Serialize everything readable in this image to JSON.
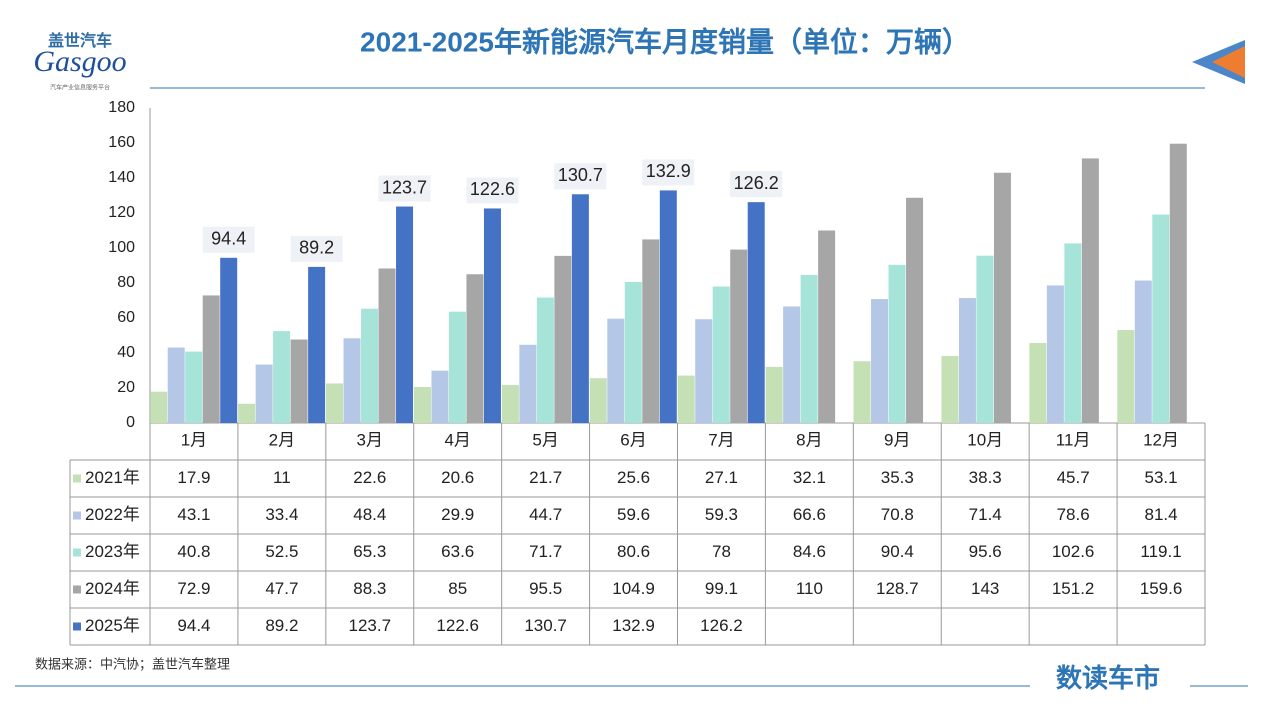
{
  "logo": {
    "cn": "盖世汽车",
    "en": "Gasgoo",
    "tagline": "汽车产业信息服务平台"
  },
  "chart_data": {
    "type": "bar",
    "title": "2021-2025年新能源汽车月度销量（单位：万辆）",
    "categories": [
      "1月",
      "2月",
      "3月",
      "4月",
      "5月",
      "6月",
      "7月",
      "8月",
      "9月",
      "10月",
      "11月",
      "12月"
    ],
    "series": [
      {
        "name": "2021年",
        "color": "#c5e0b4",
        "values": [
          17.9,
          11,
          22.6,
          20.6,
          21.7,
          25.6,
          27.1,
          32.1,
          35.3,
          38.3,
          45.7,
          53.1
        ]
      },
      {
        "name": "2022年",
        "color": "#b4c7e7",
        "values": [
          43.1,
          33.4,
          48.4,
          29.9,
          44.7,
          59.6,
          59.3,
          66.6,
          70.8,
          71.4,
          78.6,
          81.4
        ]
      },
      {
        "name": "2023年",
        "color": "#a6e3d9",
        "values": [
          40.8,
          52.5,
          65.3,
          63.6,
          71.7,
          80.6,
          78,
          84.6,
          90.4,
          95.6,
          102.6,
          119.1
        ]
      },
      {
        "name": "2024年",
        "color": "#a6a6a6",
        "values": [
          72.9,
          47.7,
          88.3,
          85,
          95.5,
          104.9,
          99.1,
          110,
          128.7,
          143,
          151.2,
          159.6
        ]
      },
      {
        "name": "2025年",
        "color": "#4472c4",
        "values": [
          94.4,
          89.2,
          123.7,
          122.6,
          130.7,
          132.9,
          126.2,
          null,
          null,
          null,
          null,
          null
        ]
      }
    ],
    "ylim": [
      0,
      180
    ],
    "yticks": [
      0,
      20,
      40,
      60,
      80,
      100,
      120,
      140,
      160,
      180
    ],
    "data_labels_series": 4
  },
  "footer": {
    "source": "数据来源：中汽协；盖世汽车整理",
    "brand": "数读车市"
  }
}
